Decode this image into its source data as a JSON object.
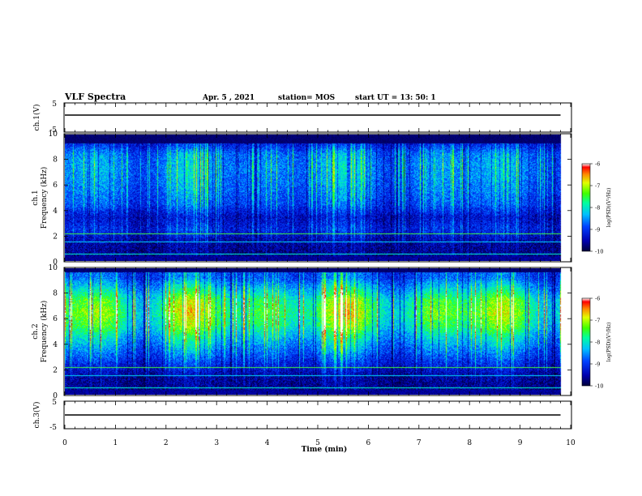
{
  "header": {
    "title": "VLF Spectra",
    "date": "Apr. 5  , 2021",
    "station": "station= MOS",
    "start_ut": "start  UT  =   13: 50: 1"
  },
  "colors": {
    "background": "#ffffff",
    "panel_dark": "#00003a",
    "trace": "#000000",
    "colormap": [
      "#ffffff",
      "#0000a0",
      "#0030ff",
      "#00b0ff",
      "#00ffb0",
      "#40ff00",
      "#d8ff00",
      "#ff8800",
      "#ff0000"
    ]
  },
  "chart_data": [
    {
      "type": "line",
      "name": "ch1-voltage",
      "ylabel": "ch.1(V)",
      "ylim": [
        -5,
        5
      ],
      "yticks": [
        "5",
        "-5"
      ],
      "xlim": [
        0,
        10
      ],
      "trace_level": -1
    },
    {
      "type": "heatmap",
      "name": "ch1-spectrogram",
      "ylabel": "ch.1\nFrequency (kHz)",
      "ylim": [
        0,
        10
      ],
      "yticks": [
        "10",
        "8",
        "6",
        "4",
        "2",
        "0"
      ],
      "xlim": [
        0,
        10
      ],
      "data_end_min": 9.8,
      "dark_band_above_khz": 9.3,
      "intensity_by_khz": [
        [
          0.5,
          0.12
        ],
        [
          1.5,
          0.15
        ],
        [
          2.5,
          0.3
        ],
        [
          3.5,
          0.22
        ],
        [
          4.5,
          0.38
        ],
        [
          5.5,
          0.44
        ],
        [
          6.5,
          0.48
        ],
        [
          7.5,
          0.5
        ],
        [
          8.5,
          0.46
        ],
        [
          9.2,
          0.3
        ]
      ],
      "colorbar": {
        "label": "log(PSD)(V²/Hz)",
        "ticks": [
          "-6",
          "-7",
          "-8",
          "-9",
          "-10"
        ],
        "range": [
          -10,
          -6
        ]
      }
    },
    {
      "type": "heatmap",
      "name": "ch2-spectrogram",
      "ylabel": "ch.2\nFrequency (kHz)",
      "ylim": [
        0,
        10
      ],
      "yticks": [
        "10",
        "8",
        "6",
        "4",
        "2",
        "0"
      ],
      "xlim": [
        0,
        10
      ],
      "data_end_min": 9.8,
      "dark_band_above_khz": 9.7,
      "intensity_by_khz": [
        [
          0.5,
          0.12
        ],
        [
          1.5,
          0.15
        ],
        [
          2.5,
          0.3
        ],
        [
          3.5,
          0.45
        ],
        [
          4.5,
          0.6
        ],
        [
          5.5,
          0.78
        ],
        [
          6.5,
          0.86
        ],
        [
          7.5,
          0.8
        ],
        [
          8.5,
          0.58
        ],
        [
          9.3,
          0.4
        ]
      ],
      "colorbar": {
        "label": "log(PSD)(V²/Hz)",
        "ticks": [
          "-6",
          "-7",
          "-8",
          "-9",
          "-10"
        ],
        "range": [
          -10,
          -6
        ]
      }
    },
    {
      "type": "line",
      "name": "ch3-voltage",
      "ylabel": "ch.3(V)",
      "ylim": [
        -5,
        5
      ],
      "yticks": [
        "5",
        "-5"
      ],
      "xlim": [
        0,
        10
      ],
      "trace_level": -1
    }
  ],
  "x_axis": {
    "label": "Time  (min)",
    "ticks": [
      "0",
      "1",
      "2",
      "3",
      "4",
      "5",
      "6",
      "7",
      "8",
      "9",
      "10"
    ]
  }
}
